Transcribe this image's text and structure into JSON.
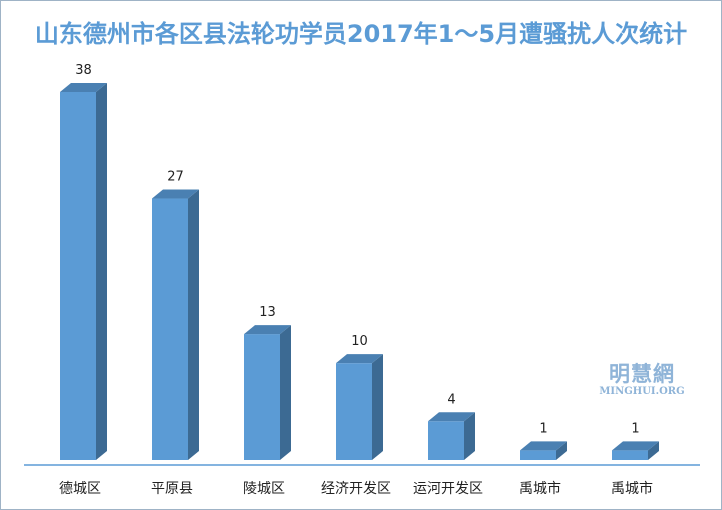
{
  "chart_data": {
    "type": "bar",
    "title": "山东德州市各区县法轮功学员2017年1～5月遭骚扰人次统计",
    "categories": [
      "德城区",
      "平原县",
      "陵城区",
      "经济开发区",
      "运河开发区",
      "禹城市",
      "禹城市"
    ],
    "values": [
      38,
      27,
      13,
      10,
      4,
      1,
      1
    ],
    "ylim": [
      0,
      38
    ],
    "grid": false,
    "legend": "none",
    "bar_style": "3d-column",
    "colors": {
      "front": "#5b9bd5",
      "side": "#3c6a93",
      "top": "#4a80b2",
      "axis": "#5b9bd5",
      "title": "#5b9bd5"
    }
  },
  "watermark": {
    "logo": "明慧網",
    "url": "MINGHUI.ORG"
  }
}
